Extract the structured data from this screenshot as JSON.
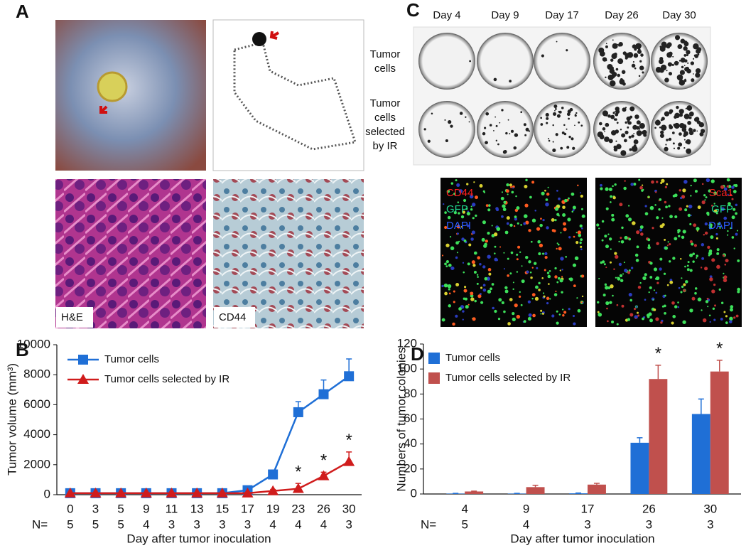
{
  "panel_labels": [
    "A",
    "B",
    "C",
    "D"
  ],
  "panel_a": {
    "image_labels": [
      "H&E",
      "CD44"
    ]
  },
  "panel_c": {
    "columns": [
      "Day 4",
      "Day 9",
      "Day 17",
      "Day 26",
      "Day 30"
    ],
    "rows": [
      [
        "Tumor",
        "cells"
      ],
      [
        "Tumor",
        "cells",
        "selected",
        "by IR"
      ]
    ],
    "stain_labels": [
      [
        "CD44",
        "GFP",
        "DAPI"
      ],
      [
        "Sca1",
        "GFP",
        "DAPI"
      ]
    ]
  },
  "chart_data": [
    {
      "type": "line",
      "xlabel": "Day  after tumor inoculation",
      "ylabel": "Tumor volume (mm³)",
      "categories": [
        "0",
        "3",
        "5",
        "9",
        "11",
        "13",
        "15",
        "17",
        "19",
        "23",
        "26",
        "30"
      ],
      "n_label": "N=",
      "n": [
        5,
        5,
        5,
        4,
        3,
        3,
        3,
        3,
        4,
        4,
        4,
        3
      ],
      "series": [
        {
          "name": "Tumor cells",
          "color": "#1f6fd6",
          "marker": "square",
          "values": [
            100,
            100,
            100,
            100,
            100,
            100,
            100,
            300,
            1350,
            5500,
            6700,
            7900
          ],
          "errors": [
            0,
            0,
            0,
            0,
            0,
            0,
            0,
            50,
            100,
            700,
            950,
            1150
          ]
        },
        {
          "name": "Tumor cells selected by IR",
          "color": "#d01c1c",
          "marker": "triangle",
          "values": [
            100,
            100,
            100,
            100,
            100,
            100,
            100,
            100,
            250,
            400,
            1250,
            2200
          ],
          "errors": [
            0,
            0,
            0,
            0,
            0,
            0,
            0,
            0,
            100,
            350,
            250,
            650
          ]
        }
      ],
      "annotations": [
        {
          "text": "*",
          "category": "23"
        },
        {
          "text": "*",
          "category": "26"
        },
        {
          "text": "*",
          "category": "30"
        }
      ],
      "ylim": [
        0,
        10000
      ],
      "yticks": [
        0,
        2000,
        4000,
        6000,
        8000,
        10000
      ]
    },
    {
      "type": "bar",
      "xlabel": "Day  after tumor inoculation",
      "ylabel": "Numbers of tumor colonies",
      "categories": [
        "4",
        "9",
        "17",
        "26",
        "30"
      ],
      "n_label": "N=",
      "n": [
        5,
        4,
        3,
        3,
        3
      ],
      "series": [
        {
          "name": "Tumor cells",
          "color": "#1f6fd6",
          "values": [
            0.3,
            0.3,
            0.5,
            41,
            64
          ],
          "errors": [
            0.2,
            0.2,
            0.3,
            4,
            12
          ]
        },
        {
          "name": "Tumor cells selected by IR",
          "color": "#c0504d",
          "values": [
            2,
            5.5,
            7.5,
            92,
            98
          ],
          "errors": [
            0.3,
            1.5,
            1,
            11,
            9
          ]
        }
      ],
      "annotations": [
        {
          "text": "*",
          "category": "26"
        },
        {
          "text": "*",
          "category": "30"
        }
      ],
      "ylim": [
        0,
        120
      ],
      "yticks": [
        0,
        20,
        40,
        60,
        80,
        100,
        120
      ]
    }
  ]
}
